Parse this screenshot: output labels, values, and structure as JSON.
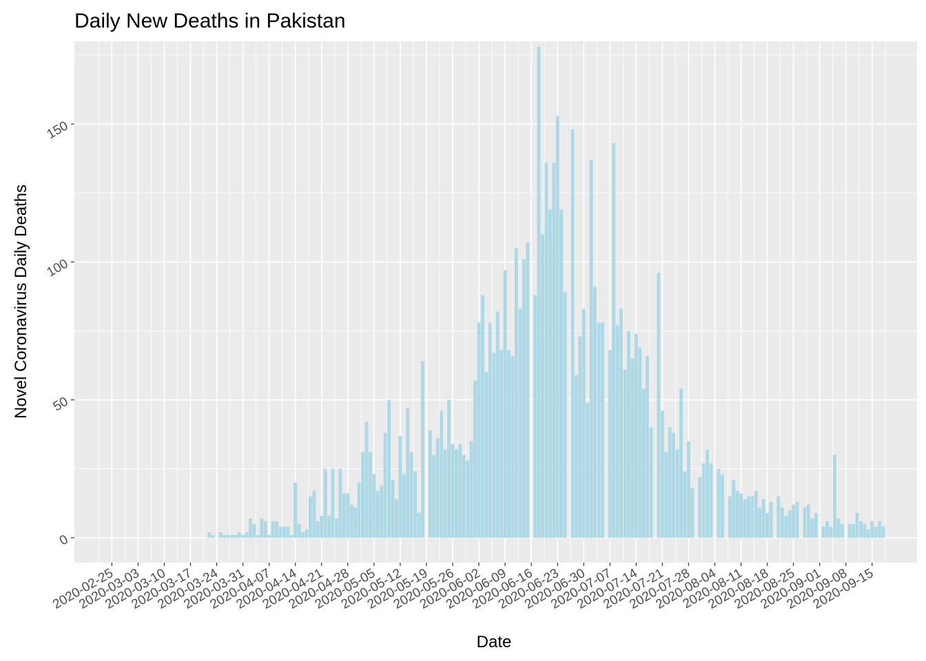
{
  "chart_data": {
    "type": "bar",
    "title": "Daily New Deaths in Pakistan",
    "xlabel": "Date",
    "ylabel": "Novel Coronavirus Daily Deaths",
    "x_axis_type": "date",
    "xlim": [
      "2020-02-15",
      "2020-09-27"
    ],
    "ylim": [
      -9,
      180
    ],
    "grid": true,
    "legend": "none",
    "colors": {
      "panel_background": "#ebebeb",
      "grid_line": "#ffffff",
      "bar_fill": "#add8e6",
      "tick_label": "#4d4d4d",
      "tick_mark": "#333333"
    },
    "x_ticks": [
      "2020-02-25",
      "2020-03-03",
      "2020-03-10",
      "2020-03-17",
      "2020-03-24",
      "2020-03-31",
      "2020-04-07",
      "2020-04-14",
      "2020-04-21",
      "2020-04-28",
      "2020-05-05",
      "2020-05-12",
      "2020-05-19",
      "2020-05-26",
      "2020-06-02",
      "2020-06-09",
      "2020-06-16",
      "2020-06-23",
      "2020-06-30",
      "2020-07-07",
      "2020-07-14",
      "2020-07-21",
      "2020-07-28",
      "2020-08-04",
      "2020-08-11",
      "2020-08-18",
      "2020-08-25",
      "2020-09-01",
      "2020-09-08",
      "2020-09-15"
    ],
    "y_ticks": [
      0,
      50,
      100,
      150
    ],
    "start_date": "2020-02-25",
    "values": [
      0,
      0,
      0,
      0,
      0,
      0,
      0,
      0,
      0,
      0,
      0,
      0,
      0,
      0,
      0,
      0,
      0,
      0,
      0,
      0,
      0,
      0,
      0,
      0,
      0,
      0,
      2,
      1,
      0,
      2,
      1,
      1,
      1,
      1,
      2,
      1,
      2,
      7,
      5,
      1,
      7,
      6,
      1,
      6,
      6,
      4,
      4,
      4,
      1,
      20,
      5,
      2,
      3,
      15,
      17,
      6,
      8,
      25,
      8,
      25,
      7,
      25,
      16,
      16,
      12,
      11,
      20,
      31,
      42,
      31,
      23,
      17,
      19,
      38,
      50,
      21,
      14,
      37,
      23,
      47,
      31,
      24,
      9,
      64,
      0,
      39,
      30,
      36,
      46,
      32,
      50,
      34,
      32,
      34,
      30,
      28,
      35,
      57,
      78,
      88,
      60,
      78,
      67,
      82,
      68,
      97,
      68,
      66,
      105,
      83,
      101,
      107,
      0,
      88,
      178,
      110,
      136,
      119,
      136,
      153,
      119,
      89,
      0,
      148,
      59,
      73,
      83,
      49,
      137,
      91,
      78,
      78,
      0,
      68,
      143,
      77,
      83,
      61,
      75,
      65,
      74,
      69,
      54,
      66,
      40,
      0,
      96,
      46,
      31,
      40,
      38,
      32,
      54,
      24,
      35,
      18,
      0,
      22,
      27,
      32,
      27,
      0,
      25,
      23,
      0,
      15,
      21,
      17,
      16,
      14,
      15,
      15,
      17,
      11,
      14,
      9,
      13,
      0,
      15,
      11,
      8,
      10,
      12,
      13,
      0,
      11,
      12,
      7,
      9,
      0,
      4,
      6,
      4,
      30,
      7,
      5,
      0,
      5,
      5,
      9,
      6,
      5,
      3,
      6,
      4,
      6,
      4
    ]
  }
}
